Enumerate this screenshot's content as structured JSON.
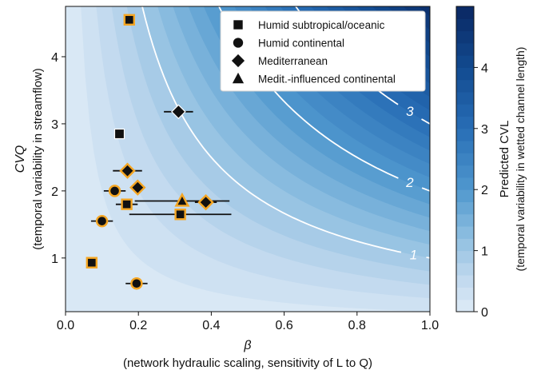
{
  "chart_data": {
    "type": "scatter",
    "title": "",
    "xlabel": "β",
    "xlabel_sub": "(network hydraulic scaling, sensitivity of L to Q)",
    "ylabel": "CVQ",
    "ylabel_sub": "(temporal variability in streamflow)",
    "xlim": [
      0.0,
      1.0
    ],
    "ylim": [
      0.2,
      4.75
    ],
    "xticks": [
      0.0,
      0.2,
      0.4,
      0.6,
      0.8,
      1.0
    ],
    "xtick_labels": [
      "0.0",
      "0.2",
      "0.4",
      "0.6",
      "0.8",
      "1.0"
    ],
    "yticks": [
      1,
      2,
      3,
      4
    ],
    "ytick_labels": [
      "1",
      "2",
      "3",
      "4"
    ],
    "grid": false,
    "legend_position": "top-right",
    "contour_field": "CV_L = beta * CV_Q",
    "contour_lines": [
      {
        "level": 1,
        "label": "1"
      },
      {
        "level": 2,
        "label": "2"
      },
      {
        "level": 3,
        "label": "3"
      }
    ],
    "colorbar": {
      "label": "Predicted CVL",
      "label_sub": "(temporal variability in wetted channel length)",
      "range": [
        0,
        5
      ],
      "ticks": [
        0,
        1,
        2,
        3,
        4
      ],
      "tick_labels": [
        "0",
        "1",
        "2",
        "3",
        "4"
      ]
    },
    "legend": [
      {
        "name": "Humid subtropical/oceanic",
        "marker": "square"
      },
      {
        "name": "Humid continental",
        "marker": "circle"
      },
      {
        "name": "Mediterranean",
        "marker": "diamond"
      },
      {
        "name": "Medit.-influenced continental",
        "marker": "triangle"
      }
    ],
    "series": [
      {
        "name": "Humid subtropical/oceanic",
        "marker": "square",
        "points": [
          {
            "x": 0.175,
            "y": 4.55,
            "xerr": 0.0,
            "outline": "orange"
          },
          {
            "x": 0.148,
            "y": 2.85,
            "xerr": 0.0,
            "outline": "white"
          },
          {
            "x": 0.168,
            "y": 1.8,
            "xerr": 0.03,
            "outline": "orange"
          },
          {
            "x": 0.315,
            "y": 1.65,
            "xerr": 0.14,
            "outline": "orange"
          },
          {
            "x": 0.072,
            "y": 0.93,
            "xerr": 0.0,
            "outline": "orange"
          }
        ]
      },
      {
        "name": "Humid continental",
        "marker": "circle",
        "points": [
          {
            "x": 0.135,
            "y": 2.0,
            "xerr": 0.03,
            "outline": "orange"
          },
          {
            "x": 0.1,
            "y": 1.55,
            "xerr": 0.03,
            "outline": "orange"
          },
          {
            "x": 0.195,
            "y": 0.62,
            "xerr": 0.03,
            "outline": "orange"
          }
        ]
      },
      {
        "name": "Mediterranean",
        "marker": "diamond",
        "points": [
          {
            "x": 0.31,
            "y": 3.18,
            "xerr": 0.04,
            "outline": "white"
          },
          {
            "x": 0.17,
            "y": 2.3,
            "xerr": 0.04,
            "outline": "orange"
          },
          {
            "x": 0.198,
            "y": 2.05,
            "xerr": 0.02,
            "outline": "orange"
          },
          {
            "x": 0.385,
            "y": 1.83,
            "xerr": 0.03,
            "outline": "orange"
          }
        ]
      },
      {
        "name": "Medit.-influenced continental",
        "marker": "triangle",
        "points": [
          {
            "x": 0.32,
            "y": 1.85,
            "xerr": 0.13,
            "outline": "orange"
          }
        ]
      }
    ]
  }
}
